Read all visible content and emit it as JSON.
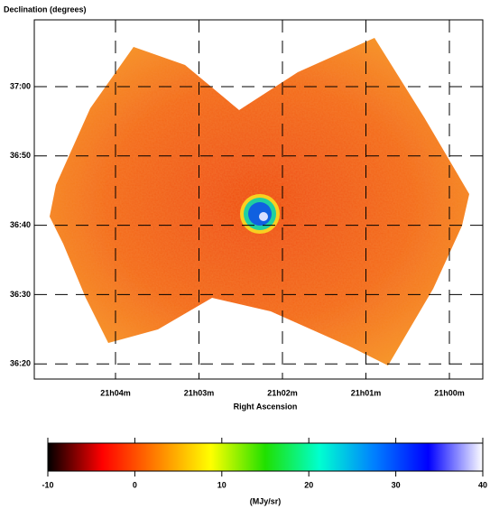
{
  "chart_data": {
    "type": "image",
    "y_title": "Declination (degrees)",
    "x_title": "Right Ascension",
    "ra_ticks": [
      "21h04m",
      "21h03m",
      "21h02m",
      "21h01m",
      "21h00m"
    ],
    "dec_ticks": [
      "37:00",
      "36:50",
      "36:40",
      "36:30",
      "36:20"
    ],
    "grid": true,
    "colorbar": {
      "label": "(MJy/sr)",
      "lim": [
        -10,
        40
      ],
      "ticks": [
        -10,
        0,
        10,
        20,
        30,
        40
      ],
      "colors": [
        "#000000",
        "#ff0000",
        "#ff8000",
        "#ffff00",
        "#20e000",
        "#00ffd0",
        "#0080ff",
        "#0000ff",
        "#ffffff"
      ]
    }
  }
}
